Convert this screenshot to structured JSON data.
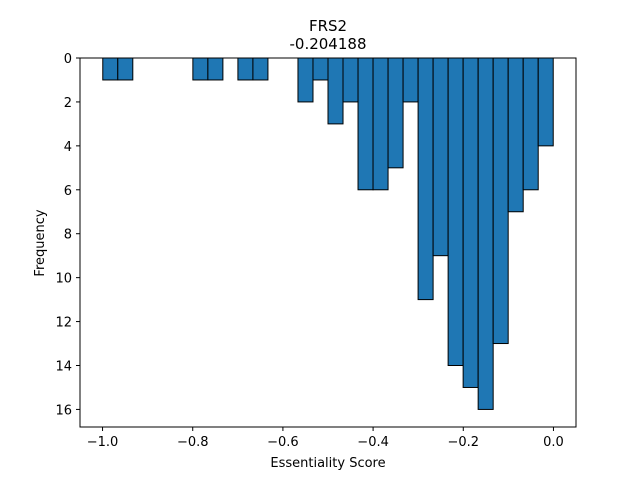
{
  "chart_data": {
    "type": "bar",
    "title": "FRS2",
    "subtitle": "-0.204188",
    "xlabel": "Essentiality Score",
    "ylabel": "Frequency",
    "xlim": [
      -1.05,
      0.05
    ],
    "ylim": [
      16.8,
      0
    ],
    "y_inverted": true,
    "bin_width": 0.0333,
    "bar_color": "#1f77b4",
    "edge_color": "#000000",
    "x_ticks": [
      -1.0,
      -0.8,
      -0.6,
      -0.4,
      -0.2,
      0.0
    ],
    "x_tick_labels": [
      "−1.0",
      "−0.8",
      "−0.6",
      "−0.4",
      "−0.2",
      "0.0"
    ],
    "y_ticks": [
      0,
      2,
      4,
      6,
      8,
      10,
      12,
      14,
      16
    ],
    "y_tick_labels": [
      "0",
      "2",
      "4",
      "6",
      "8",
      "10",
      "12",
      "14",
      "16"
    ],
    "bins": [
      {
        "left": -0.9995,
        "count": 1
      },
      {
        "left": -0.9662,
        "count": 1
      },
      {
        "left": -0.7997,
        "count": 1
      },
      {
        "left": -0.7664,
        "count": 1
      },
      {
        "left": -0.6998,
        "count": 1
      },
      {
        "left": -0.6665,
        "count": 1
      },
      {
        "left": -0.5666,
        "count": 2
      },
      {
        "left": -0.5333,
        "count": 1
      },
      {
        "left": -0.5,
        "count": 3
      },
      {
        "left": -0.4667,
        "count": 2
      },
      {
        "left": -0.4334,
        "count": 6
      },
      {
        "left": -0.4001,
        "count": 6
      },
      {
        "left": -0.3668,
        "count": 5
      },
      {
        "left": -0.3335,
        "count": 2
      },
      {
        "left": -0.3002,
        "count": 11
      },
      {
        "left": -0.2669,
        "count": 9
      },
      {
        "left": -0.2336,
        "count": 14
      },
      {
        "left": -0.2003,
        "count": 15
      },
      {
        "left": -0.167,
        "count": 16
      },
      {
        "left": -0.1337,
        "count": 13
      },
      {
        "left": -0.1004,
        "count": 7
      },
      {
        "left": -0.0671,
        "count": 6
      },
      {
        "left": -0.0338,
        "count": 4
      }
    ]
  }
}
